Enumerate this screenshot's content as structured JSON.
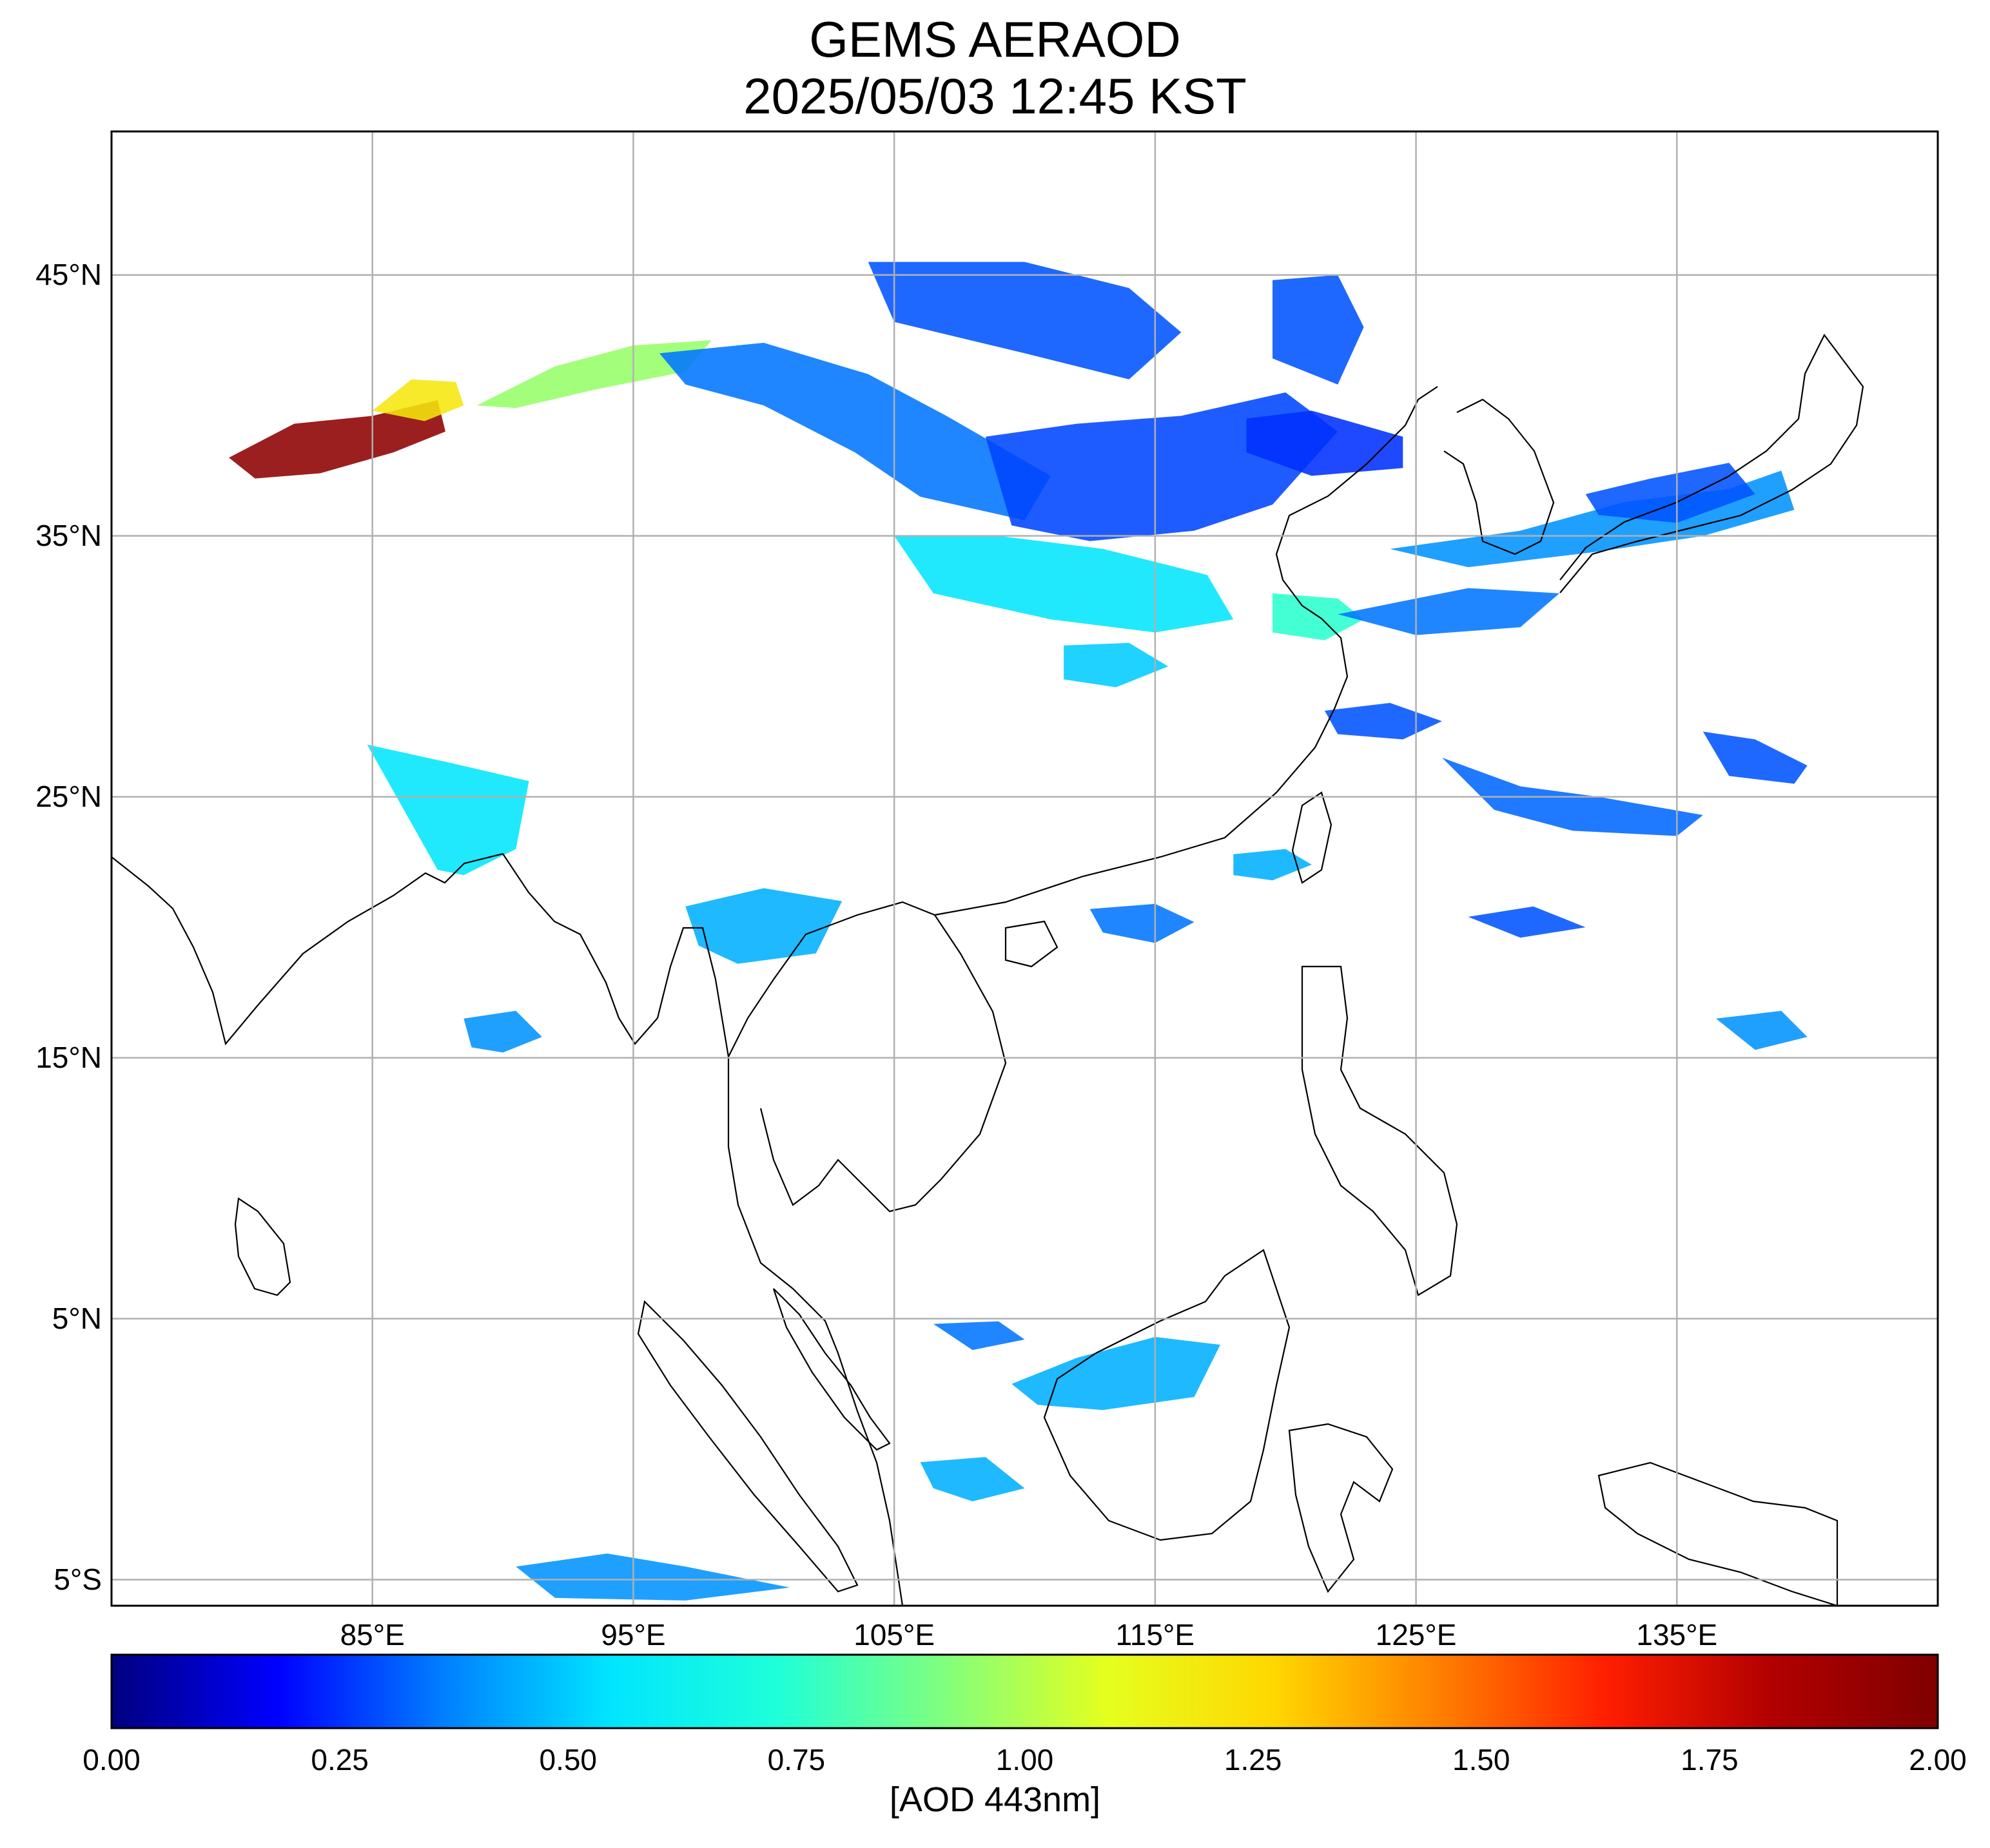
{
  "title": {
    "line1": "GEMS AERAOD",
    "line2": "2025/05/03 12:45 KST"
  },
  "map": {
    "lon_range": [
      75,
      145
    ],
    "lat_range": [
      -6,
      50.5
    ],
    "lat_ticks": [
      {
        "value": 45,
        "label": "45°N"
      },
      {
        "value": 35,
        "label": "35°N"
      },
      {
        "value": 25,
        "label": "25°N"
      },
      {
        "value": 15,
        "label": "15°N"
      },
      {
        "value": 5,
        "label": "5°N"
      },
      {
        "value": -5,
        "label": "5°S"
      }
    ],
    "lon_ticks": [
      {
        "value": 85,
        "label": "85°E"
      },
      {
        "value": 95,
        "label": "95°E"
      },
      {
        "value": 105,
        "label": "105°E"
      },
      {
        "value": 115,
        "label": "115°E"
      },
      {
        "value": 125,
        "label": "125°E"
      },
      {
        "value": 135,
        "label": "135°E"
      }
    ],
    "grid": true,
    "aerosol_regions": [
      {
        "name": "taklamakan-high",
        "aod": 1.95,
        "lonlat": [
          [
            79.5,
            38
          ],
          [
            82,
            39.3
          ],
          [
            85,
            39.6
          ],
          [
            87.5,
            40.2
          ],
          [
            87.8,
            39.0
          ],
          [
            85.8,
            38.2
          ],
          [
            83,
            37.4
          ],
          [
            80.5,
            37.2
          ]
        ]
      },
      {
        "name": "taklamakan-east",
        "aod": 1.2,
        "lonlat": [
          [
            85,
            39.8
          ],
          [
            86.5,
            41.0
          ],
          [
            88.2,
            40.9
          ],
          [
            88.5,
            40.0
          ],
          [
            87,
            39.4
          ]
        ]
      },
      {
        "name": "gansu-plume",
        "aod": 0.95,
        "lonlat": [
          [
            89,
            40.0
          ],
          [
            92,
            41.5
          ],
          [
            95,
            42.3
          ],
          [
            98,
            42.5
          ],
          [
            97,
            41.3
          ],
          [
            93.5,
            40.6
          ],
          [
            90.5,
            39.9
          ]
        ]
      },
      {
        "name": "north-china-plume",
        "aod": 0.35,
        "lonlat": [
          [
            96,
            42.0
          ],
          [
            100,
            42.4
          ],
          [
            104,
            41.2
          ],
          [
            107,
            39.6
          ],
          [
            111,
            37.3
          ],
          [
            110,
            35.6
          ],
          [
            106,
            36.5
          ],
          [
            103.5,
            38.2
          ],
          [
            100,
            40.0
          ],
          [
            97,
            40.8
          ]
        ]
      },
      {
        "name": "inner-mongolia",
        "aod": 0.3,
        "lonlat": [
          [
            104,
            45.5
          ],
          [
            110,
            45.5
          ],
          [
            114,
            44.5
          ],
          [
            116,
            42.8
          ],
          [
            114,
            41.0
          ],
          [
            110,
            42.0
          ],
          [
            105,
            43.2
          ]
        ]
      },
      {
        "name": "north-china-plain",
        "aod": 0.28,
        "lonlat": [
          [
            108.5,
            38.8
          ],
          [
            112,
            39.3
          ],
          [
            116,
            39.6
          ],
          [
            120,
            40.5
          ],
          [
            122,
            39.0
          ],
          [
            119.5,
            36.2
          ],
          [
            116.5,
            35.2
          ],
          [
            112.5,
            34.8
          ],
          [
            109.5,
            35.4
          ]
        ]
      },
      {
        "name": "northeast-china",
        "aod": 0.3,
        "lonlat": [
          [
            119.5,
            44.8
          ],
          [
            122,
            45.0
          ],
          [
            123,
            43.0
          ],
          [
            122,
            40.8
          ],
          [
            119.5,
            41.8
          ]
        ]
      },
      {
        "name": "bohai",
        "aod": 0.25,
        "lonlat": [
          [
            118.5,
            39.5
          ],
          [
            121,
            39.8
          ],
          [
            124.5,
            38.8
          ],
          [
            124.5,
            37.6
          ],
          [
            121,
            37.3
          ],
          [
            118.5,
            38.2
          ]
        ]
      },
      {
        "name": "sichuan-henan",
        "aod": 0.55,
        "lonlat": [
          [
            105,
            35.0
          ],
          [
            109,
            35.0
          ],
          [
            113,
            34.5
          ],
          [
            117,
            33.5
          ],
          [
            118,
            31.8
          ],
          [
            115,
            31.3
          ],
          [
            111,
            31.8
          ],
          [
            106.5,
            32.8
          ]
        ]
      },
      {
        "name": "yangtze-delta",
        "aod": 0.75,
        "lonlat": [
          [
            119.5,
            32.8
          ],
          [
            122,
            32.6
          ],
          [
            123,
            31.8
          ],
          [
            121.5,
            31.0
          ],
          [
            119.5,
            31.3
          ]
        ]
      },
      {
        "name": "central-china",
        "aod": 0.5,
        "lonlat": [
          [
            111.5,
            30.8
          ],
          [
            114,
            30.9
          ],
          [
            115.5,
            30.0
          ],
          [
            113.5,
            29.2
          ],
          [
            111.5,
            29.5
          ]
        ]
      },
      {
        "name": "east-china-sea",
        "aod": 0.3,
        "lonlat": [
          [
            121.5,
            28.3
          ],
          [
            124,
            28.6
          ],
          [
            126,
            27.9
          ],
          [
            124.5,
            27.2
          ],
          [
            122,
            27.4
          ]
        ]
      },
      {
        "name": "bay-of-bengal-north",
        "aod": 0.55,
        "lonlat": [
          [
            84.8,
            27.0
          ],
          [
            88,
            26.3
          ],
          [
            91,
            25.6
          ],
          [
            90.5,
            23.0
          ],
          [
            88.5,
            22.0
          ],
          [
            87.5,
            22.2
          ]
        ]
      },
      {
        "name": "bay-of-bengal-blob",
        "aod": 0.4,
        "lonlat": [
          [
            88.5,
            16.5
          ],
          [
            90.5,
            16.8
          ],
          [
            91.5,
            15.8
          ],
          [
            90,
            15.2
          ],
          [
            88.8,
            15.4
          ]
        ]
      },
      {
        "name": "korea-japan-belt",
        "aod": 0.4,
        "lonlat": [
          [
            124,
            34.5
          ],
          [
            129,
            35.2
          ],
          [
            133,
            36.3
          ],
          [
            137,
            36.8
          ],
          [
            139,
            37.5
          ],
          [
            139.5,
            36.0
          ],
          [
            136,
            35.0
          ],
          [
            132,
            34.4
          ],
          [
            127,
            33.8
          ]
        ]
      },
      {
        "name": "japan-sea-blob",
        "aod": 0.3,
        "lonlat": [
          [
            131.5,
            36.6
          ],
          [
            134,
            37.2
          ],
          [
            137,
            37.8
          ],
          [
            138,
            36.6
          ],
          [
            135,
            35.5
          ],
          [
            132,
            35.8
          ]
        ]
      },
      {
        "name": "pacific-band-1",
        "aod": 0.35,
        "lonlat": [
          [
            122,
            32.0
          ],
          [
            127,
            33.0
          ],
          [
            130.5,
            32.8
          ],
          [
            129,
            31.5
          ],
          [
            125,
            31.2
          ]
        ]
      },
      {
        "name": "pacific-band-2",
        "aod": 0.33,
        "lonlat": [
          [
            126,
            26.5
          ],
          [
            129,
            25.4
          ],
          [
            132,
            25.0
          ],
          [
            136,
            24.3
          ],
          [
            135,
            23.5
          ],
          [
            131,
            23.7
          ],
          [
            128,
            24.5
          ]
        ]
      },
      {
        "name": "pacific-band-3",
        "aod": 0.3,
        "lonlat": [
          [
            136,
            27.5
          ],
          [
            138,
            27.2
          ],
          [
            140,
            26.2
          ],
          [
            139.5,
            25.5
          ],
          [
            137,
            25.8
          ]
        ]
      },
      {
        "name": "taiwan-strait",
        "aod": 0.45,
        "lonlat": [
          [
            118,
            22.8
          ],
          [
            120,
            23.0
          ],
          [
            121,
            22.4
          ],
          [
            119.5,
            21.8
          ],
          [
            118,
            22.0
          ]
        ]
      },
      {
        "name": "south-china-sea-n",
        "aod": 0.35,
        "lonlat": [
          [
            112.5,
            20.7
          ],
          [
            115,
            20.9
          ],
          [
            116.5,
            20.2
          ],
          [
            115,
            19.4
          ],
          [
            113,
            19.8
          ]
        ]
      },
      {
        "name": "philippine-sea",
        "aod": 0.3,
        "lonlat": [
          [
            127,
            20.4
          ],
          [
            129.5,
            20.8
          ],
          [
            131.5,
            20.0
          ],
          [
            129,
            19.6
          ]
        ]
      },
      {
        "name": "east-pacific-s",
        "aod": 0.4,
        "lonlat": [
          [
            136.5,
            16.5
          ],
          [
            139,
            16.8
          ],
          [
            140,
            15.8
          ],
          [
            138,
            15.3
          ]
        ]
      },
      {
        "name": "gulf-of-thailand",
        "aod": 0.35,
        "lonlat": [
          [
            106.5,
            4.8
          ],
          [
            109,
            4.9
          ],
          [
            110,
            4.2
          ],
          [
            108,
            3.8
          ]
        ]
      },
      {
        "name": "borneo-north",
        "aod": 0.45,
        "lonlat": [
          [
            109.5,
            2.5
          ],
          [
            112,
            3.5
          ],
          [
            115,
            4.3
          ],
          [
            117.5,
            4.0
          ],
          [
            116.5,
            2.0
          ],
          [
            113,
            1.5
          ],
          [
            110.5,
            1.7
          ]
        ]
      },
      {
        "name": "sumatra-south",
        "aod": 0.4,
        "lonlat": [
          [
            90.5,
            -4.5
          ],
          [
            94,
            -4.0
          ],
          [
            97,
            -4.5
          ],
          [
            101,
            -5.3
          ],
          [
            97,
            -5.8
          ],
          [
            92,
            -5.7
          ]
        ]
      },
      {
        "name": "java-sea",
        "aod": 0.45,
        "lonlat": [
          [
            106,
            -0.5
          ],
          [
            108.5,
            -0.3
          ],
          [
            110,
            -1.5
          ],
          [
            108,
            -2.0
          ],
          [
            106.5,
            -1.5
          ]
        ]
      },
      {
        "name": "myanmar-thailand",
        "aod": 0.45,
        "lonlat": [
          [
            97,
            20.8
          ],
          [
            100,
            21.5
          ],
          [
            103,
            21.0
          ],
          [
            102,
            19.0
          ],
          [
            99,
            18.6
          ],
          [
            97.5,
            19.3
          ]
        ]
      }
    ]
  },
  "colorbar": {
    "min": 0,
    "max": 2,
    "ticks": [
      "0.00",
      "0.25",
      "0.50",
      "0.75",
      "1.00",
      "1.25",
      "1.50",
      "1.75",
      "2.00"
    ],
    "label": "[AOD 443nm]",
    "colors": [
      "#00007f",
      "#0000ff",
      "#007fff",
      "#00e5ff",
      "#1effd9",
      "#7fff7f",
      "#e5ff1e",
      "#ffd700",
      "#ff7f00",
      "#ff1e00",
      "#b20000",
      "#7f0000"
    ]
  }
}
